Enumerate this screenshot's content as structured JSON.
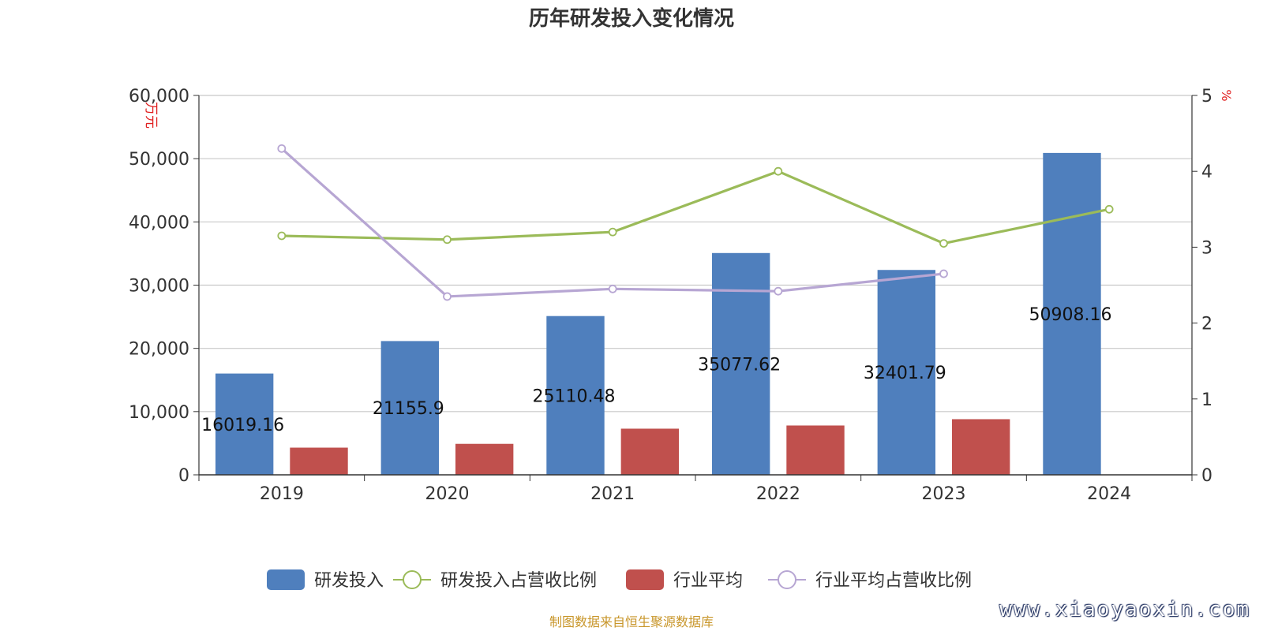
{
  "chart_data": {
    "type": "bar",
    "title": "历年研发投入变化情况",
    "categories": [
      "2019",
      "2020",
      "2021",
      "2022",
      "2023",
      "2024"
    ],
    "y_left": {
      "label": "万元",
      "min": 0,
      "max": 60000,
      "ticks": [
        "0",
        "10,000",
        "20,000",
        "30,000",
        "40,000",
        "50,000",
        "60,000"
      ]
    },
    "y_right": {
      "label": "%",
      "min": 0,
      "max": 5,
      "ticks": [
        "0",
        "1",
        "2",
        "3",
        "4",
        "5"
      ]
    },
    "grid": true,
    "legend_position": "bottom",
    "series": [
      {
        "name": "研发投入",
        "kind": "bar",
        "axis": "left",
        "color": "#4f7fbd",
        "values": [
          16019.16,
          21155.9,
          25110.48,
          35077.62,
          32401.79,
          50908.16
        ],
        "labels": [
          "16019.16",
          "21155.9",
          "25110.48",
          "35077.62",
          "32401.79",
          "50908.16"
        ]
      },
      {
        "name": "研发投入占营收比例",
        "kind": "line",
        "axis": "right",
        "color": "#9bbb59",
        "values": [
          3.15,
          3.1,
          3.2,
          4.0,
          3.05,
          3.5
        ]
      },
      {
        "name": "行业平均",
        "kind": "bar",
        "axis": "left",
        "color": "#c0504d",
        "values": [
          4300,
          4900,
          7300,
          7800,
          8800,
          null
        ]
      },
      {
        "name": "行业平均占营收比例",
        "kind": "line",
        "axis": "right",
        "color": "#b7a6d3",
        "values": [
          4.3,
          2.35,
          2.45,
          2.42,
          2.65,
          null
        ]
      }
    ]
  },
  "footer": {
    "source": "制图数据来自恒生聚源数据库",
    "watermark": "www.xiaoyaoxin.com"
  }
}
